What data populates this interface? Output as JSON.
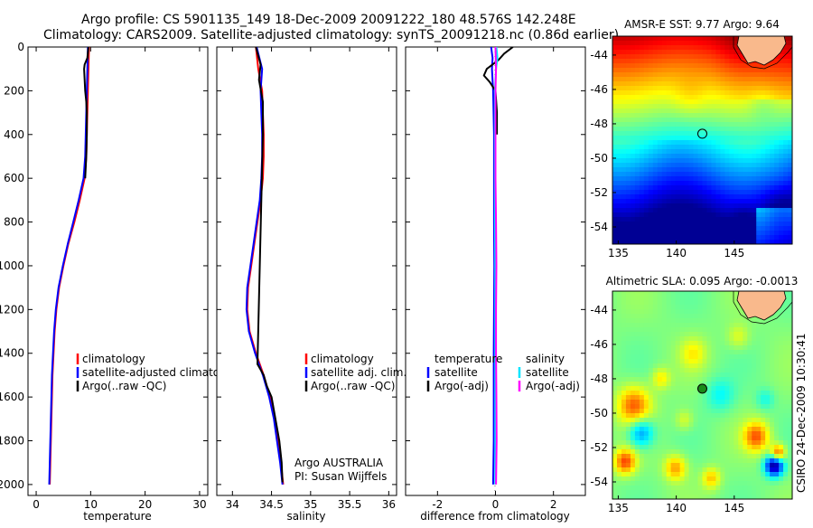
{
  "header": {
    "line1": "Argo profile: CS 5901135_149 18-Dec-2009 20091222_180 48.576S 142.248E",
    "line2": "Climatology: CARS2009. Satellite-adjusted climatology: synTS_20091218.nc (0.86d earlier)"
  },
  "credit": "CSIRO 24-Dec-2009 10:30:41",
  "colors": {
    "climatology": "#ff0000",
    "satellite": "#0000ff",
    "argo": "#000000",
    "salinity_satellite": "#00e5ff",
    "salinity_argo": "#ff00ff"
  },
  "chart_data": [
    {
      "type": "line",
      "id": "temperature",
      "xlabel": "temperature",
      "ylabel": "",
      "xlim": [
        -1.5,
        31.5
      ],
      "ylim": [
        2050,
        0
      ],
      "xticks": [
        "0",
        "10",
        "20",
        "30"
      ],
      "yticks": [
        "0",
        "200",
        "400",
        "600",
        "800",
        "1000",
        "1200",
        "1400",
        "1600",
        "1800",
        "2000"
      ],
      "legend": {
        "position": "lower-right",
        "entries": [
          "climatology",
          "satellite-adjusted climatology",
          "Argo(..raw -QC)"
        ]
      },
      "series": [
        {
          "name": "climatology",
          "color": "#ff0000",
          "depth": [
            0,
            100,
            200,
            300,
            400,
            500,
            600,
            700,
            800,
            900,
            1000,
            1100,
            1200,
            1300,
            1400,
            1500,
            1600,
            1700,
            1800,
            1900,
            2000
          ],
          "values": [
            9.7,
            9.6,
            9.5,
            9.4,
            9.3,
            9.2,
            8.9,
            8.0,
            7.0,
            5.9,
            5.0,
            4.2,
            3.7,
            3.4,
            3.2,
            3.0,
            2.9,
            2.8,
            2.7,
            2.6,
            2.5
          ]
        },
        {
          "name": "satellite-adjusted climatology",
          "color": "#0000ff",
          "depth": [
            0,
            100,
            200,
            300,
            400,
            500,
            600,
            700,
            800,
            900,
            1000,
            1100,
            1200,
            1300,
            1400,
            1500,
            1600,
            1700,
            1800,
            1900,
            2000
          ],
          "values": [
            9.5,
            9.4,
            9.3,
            9.2,
            9.1,
            9.0,
            8.7,
            7.8,
            6.8,
            5.8,
            4.9,
            4.1,
            3.6,
            3.3,
            3.1,
            2.9,
            2.8,
            2.7,
            2.6,
            2.5,
            2.4
          ]
        },
        {
          "name": "Argo(..raw -QC)",
          "color": "#000000",
          "depth": [
            0,
            50,
            80,
            100,
            150,
            200,
            250,
            300,
            400,
            500,
            600
          ],
          "values": [
            9.6,
            9.4,
            8.9,
            8.8,
            8.9,
            9.0,
            9.2,
            9.3,
            9.3,
            9.2,
            9.0
          ]
        }
      ]
    },
    {
      "type": "line",
      "id": "salinity",
      "xlabel": "salinity",
      "ylabel": "",
      "xlim": [
        33.8,
        36.1
      ],
      "ylim": [
        2050,
        0
      ],
      "xticks": [
        "34",
        "34.5",
        "35",
        "35.5",
        "36"
      ],
      "yticks": [],
      "legend": {
        "position": "lower-right",
        "entries": [
          "climatology",
          "satellite adj. clim.",
          "Argo(..raw -QC)"
        ]
      },
      "annotation": [
        "Argo AUSTRALIA",
        "PI: Susan Wijffels"
      ],
      "series": [
        {
          "name": "climatology",
          "color": "#ff0000",
          "depth": [
            0,
            100,
            200,
            300,
            400,
            500,
            600,
            700,
            800,
            900,
            1000,
            1100,
            1200,
            1300,
            1400,
            1500,
            1600,
            1700,
            1800,
            1900,
            2000
          ],
          "values": [
            34.3,
            34.33,
            34.38,
            34.39,
            34.4,
            34.4,
            34.39,
            34.36,
            34.32,
            34.28,
            34.24,
            34.2,
            34.19,
            34.22,
            34.3,
            34.4,
            34.48,
            34.54,
            34.58,
            34.62,
            34.65
          ]
        },
        {
          "name": "satellite adj. clim.",
          "color": "#0000ff",
          "depth": [
            0,
            100,
            200,
            300,
            400,
            500,
            600,
            700,
            800,
            900,
            1000,
            1100,
            1200,
            1300,
            1400,
            1500,
            1600,
            1700,
            1800,
            1900,
            2000
          ],
          "values": [
            34.31,
            34.38,
            34.36,
            34.37,
            34.38,
            34.38,
            34.37,
            34.35,
            34.31,
            34.27,
            34.23,
            34.19,
            34.18,
            34.21,
            34.29,
            34.39,
            34.47,
            34.53,
            34.57,
            34.61,
            34.64
          ]
        },
        {
          "name": "Argo(..raw -QC)",
          "color": "#000000",
          "depth": [
            0,
            80,
            150,
            250,
            400,
            1450,
            1500,
            1550,
            1600,
            1700,
            1800,
            1900,
            1990
          ],
          "values": [
            34.3,
            34.36,
            34.34,
            34.39,
            34.39,
            34.32,
            34.4,
            34.44,
            34.5,
            34.55,
            34.6,
            34.63,
            34.64
          ]
        }
      ]
    },
    {
      "type": "line",
      "id": "difference",
      "xlabel": "difference from climatology",
      "ylabel": "",
      "xlim": [
        -3.1,
        3.1
      ],
      "ylim": [
        2050,
        0
      ],
      "xticks": [
        "-2",
        "0",
        "2"
      ],
      "yticks": [],
      "legend": {
        "position": "lower",
        "temperature_title": "temperature",
        "salinity_title": "salinity",
        "temperature_entries": [
          "satellite",
          "Argo(-adj)"
        ],
        "salinity_entries": [
          "satellite",
          "Argo(-adj)"
        ]
      },
      "series": [
        {
          "name": "temperature satellite",
          "color": "#0000ff",
          "depth": [
            0,
            50,
            100,
            200,
            400,
            600,
            800,
            1000,
            1200,
            1400,
            1600,
            1800,
            2000
          ],
          "values": [
            -0.15,
            -0.1,
            -0.12,
            -0.08,
            -0.05,
            -0.05,
            -0.05,
            -0.04,
            -0.05,
            -0.06,
            -0.06,
            -0.06,
            -0.08
          ]
        },
        {
          "name": "temperature Argo(-adj)",
          "color": "#000000",
          "depth": [
            0,
            30,
            60,
            100,
            130,
            160,
            200,
            300,
            400
          ],
          "values": [
            0.6,
            0.3,
            0.1,
            -0.3,
            -0.4,
            -0.2,
            0.0,
            0.05,
            0.05
          ]
        },
        {
          "name": "salinity satellite",
          "color": "#00e5ff",
          "depth": [
            0,
            50,
            100,
            200,
            400,
            600,
            800,
            1000,
            1200,
            1400,
            1600,
            1800,
            2000
          ],
          "values": [
            0.03,
            0.07,
            0.02,
            -0.02,
            -0.02,
            -0.02,
            -0.02,
            -0.01,
            -0.01,
            -0.01,
            -0.01,
            -0.01,
            -0.01
          ]
        },
        {
          "name": "salinity Argo(-adj)",
          "color": "#ff00ff",
          "depth": [
            0,
            100,
            200,
            400,
            600,
            800,
            1000,
            1200,
            1400,
            1600,
            1800,
            2000
          ],
          "values": [
            0.0,
            0.02,
            0.0,
            0.0,
            0.0,
            0.02,
            0.03,
            0.02,
            0.02,
            0.03,
            0.04,
            0.02
          ]
        }
      ]
    },
    {
      "type": "heatmap",
      "id": "sst-map",
      "title": "AMSR-E SST: 9.77 Argo: 9.64",
      "xlim": [
        134.5,
        150
      ],
      "ylim": [
        -55,
        -42.9
      ],
      "xticks": [
        "135",
        "140",
        "145"
      ],
      "yticks": [
        "-44",
        "-46",
        "-48",
        "-50",
        "-52",
        "-54"
      ],
      "marker": {
        "lon": 142.248,
        "lat": -48.576
      }
    },
    {
      "type": "heatmap",
      "id": "sla-map",
      "title": "Altimetric SLA: 0.095 Argo: -0.0013",
      "xlim": [
        134.5,
        150
      ],
      "ylim": [
        -55,
        -42.9
      ],
      "xticks": [
        "135",
        "140",
        "145"
      ],
      "yticks": [
        "-44",
        "-46",
        "-48",
        "-50",
        "-52",
        "-54"
      ],
      "marker": {
        "lon": 142.248,
        "lat": -48.576
      }
    }
  ]
}
